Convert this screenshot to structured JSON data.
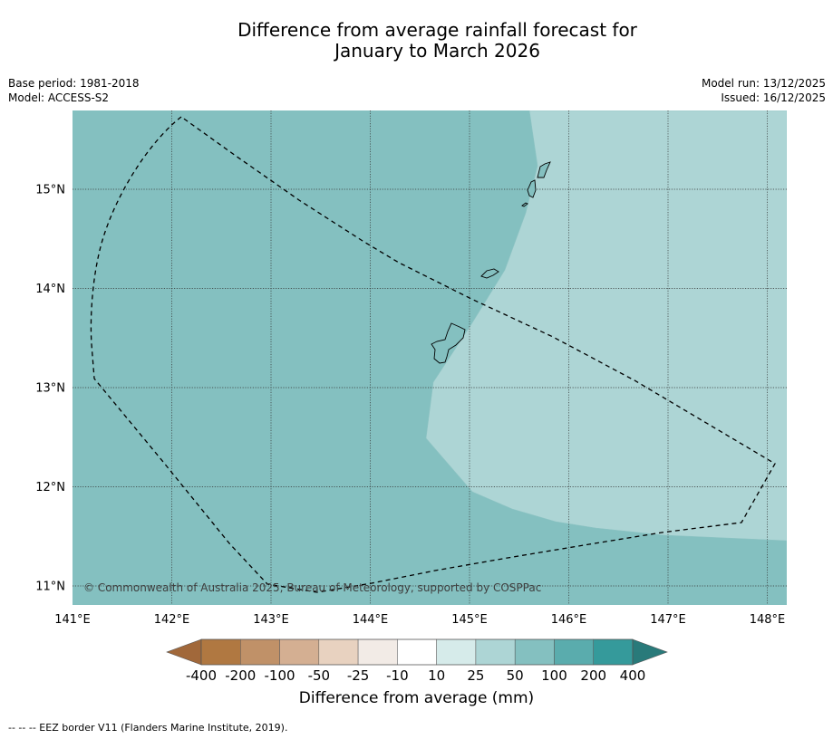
{
  "title": {
    "line1": "Difference from average rainfall forecast for",
    "line2": "January to March 2026"
  },
  "meta": {
    "base_period": "Base period: 1981-2018",
    "model": "Model: ACCESS-S2",
    "model_run": "Model run: 13/12/2025",
    "issued": "Issued: 16/12/2025"
  },
  "map": {
    "copyright": "© Commonwealth of Australia 2025, Bureau of Meteorology, supported by COSPPac",
    "lon_labels": [
      "141°E",
      "142°E",
      "143°E",
      "144°E",
      "145°E",
      "146°E",
      "147°E",
      "148°E"
    ],
    "lat_labels": [
      "15°N",
      "14°N",
      "13°N",
      "12°N",
      "11°N"
    ],
    "lon_range": [
      141,
      148.2
    ],
    "lat_range": [
      10.8,
      15.8
    ],
    "categories": [
      {
        "name": "50 to 100 mm above average",
        "color": "#84c0c0"
      },
      {
        "name": "25 to 50 mm above average",
        "color": "#add5d5"
      }
    ]
  },
  "colorbar": {
    "ticks": [
      "-400",
      "-200",
      "-100",
      "-50",
      "-25",
      "-10",
      "10",
      "25",
      "50",
      "100",
      "200",
      "400"
    ],
    "colors": [
      "#a1683a",
      "#b07841",
      "#c09168",
      "#d4af92",
      "#e8d2c0",
      "#f2ebe6",
      "#ffffff",
      "#d6ebea",
      "#add5d5",
      "#84c0c0",
      "#5aacad",
      "#359a9b",
      "#297a7a"
    ],
    "label": "Difference from average (mm)"
  },
  "footer": "--  --  -- EEZ border V11 (Flanders Marine Institute, 2019)."
}
